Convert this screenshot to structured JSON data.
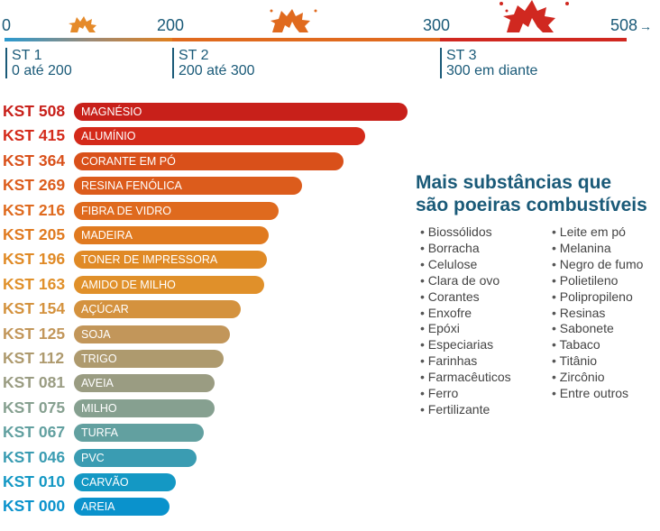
{
  "scale": {
    "ticks": [
      "0",
      "200",
      "300",
      "508"
    ],
    "arrow": "→",
    "colors": {
      "st1_start": "#2a9ad0",
      "st1_end": "#e0801e",
      "st2": "#e06a1e",
      "st3": "#d02820"
    },
    "classes": [
      {
        "name": "ST 1",
        "range": "0 até 200",
        "icon": "small-explosion-icon"
      },
      {
        "name": "ST 2",
        "range": "200 até 300",
        "icon": "medium-explosion-icon"
      },
      {
        "name": "ST 3",
        "range": "300 em diante",
        "icon": "large-explosion-icon"
      }
    ]
  },
  "chart_data": {
    "type": "bar",
    "orientation": "horizontal",
    "categories": [
      "MAGNÉSIO",
      "ALUMÍNIO",
      "CORANTE EM PÓ",
      "RESINA FENÓLICA",
      "FIBRA DE VIDRO",
      "MADEIRA",
      "TONER DE IMPRESSORA",
      "AMIDO DE MILHO",
      "AÇÚCAR",
      "SOJA",
      "TRIGO",
      "AVEIA",
      "MILHO",
      "TURFA",
      "PVC",
      "CARVÃO",
      "AREIA"
    ],
    "labels": [
      "KST 508",
      "KST 415",
      "KST 364",
      "KST 269",
      "KST 216",
      "KST 205",
      "KST 196",
      "KST 163",
      "KST 154",
      "KST 125",
      "KST 112",
      "KST 081",
      "KST 075",
      "KST 067",
      "KST 046",
      "KST 010",
      "KST 000"
    ],
    "values": [
      508,
      415,
      364,
      269,
      216,
      205,
      196,
      163,
      154,
      125,
      112,
      81,
      75,
      67,
      46,
      10,
      0
    ],
    "colors": [
      "#c8201a",
      "#d42a1a",
      "#d9501a",
      "#dc5c1c",
      "#df6a1e",
      "#e07a20",
      "#e08a26",
      "#e0902a",
      "#d4923e",
      "#c2965a",
      "#ae9a6e",
      "#9a9c82",
      "#86a090",
      "#62a0a0",
      "#3a9cb2",
      "#1498c4",
      "#0a92cc"
    ]
  },
  "side": {
    "title_line1": "Mais substâncias que",
    "title_line2": "são poeiras combustíveis",
    "col1": [
      "Biossólidos",
      "Borracha",
      "Celulose",
      "Clara de ovo",
      "Corantes",
      "Enxofre",
      "Epóxi",
      "Especiarias",
      "Farinhas",
      "Farmacêuticos",
      "Ferro",
      "Fertilizante"
    ],
    "col2": [
      "Leite em pó",
      "Melanina",
      "Negro de fumo",
      "Polietileno",
      "Polipropileno",
      "Resinas",
      "Sabonete",
      "Tabaco",
      "Titânio",
      "Zircônio",
      "Entre outros"
    ]
  }
}
